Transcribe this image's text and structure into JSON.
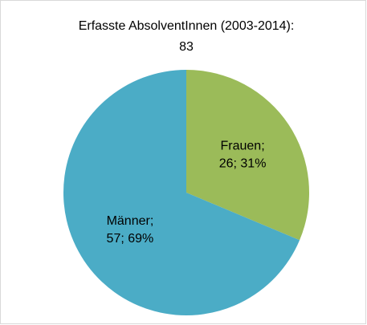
{
  "chart_data": {
    "type": "pie",
    "title": "Erfasste AbsolventInnen (2003-2014):",
    "subtitle": "83",
    "categories": [
      "Frauen;",
      "Männer;"
    ],
    "values": [
      26,
      57
    ],
    "value_labels": [
      "26; 31%",
      "57; 69%"
    ],
    "colors": [
      "#9bbb59",
      "#4bacc6"
    ]
  }
}
